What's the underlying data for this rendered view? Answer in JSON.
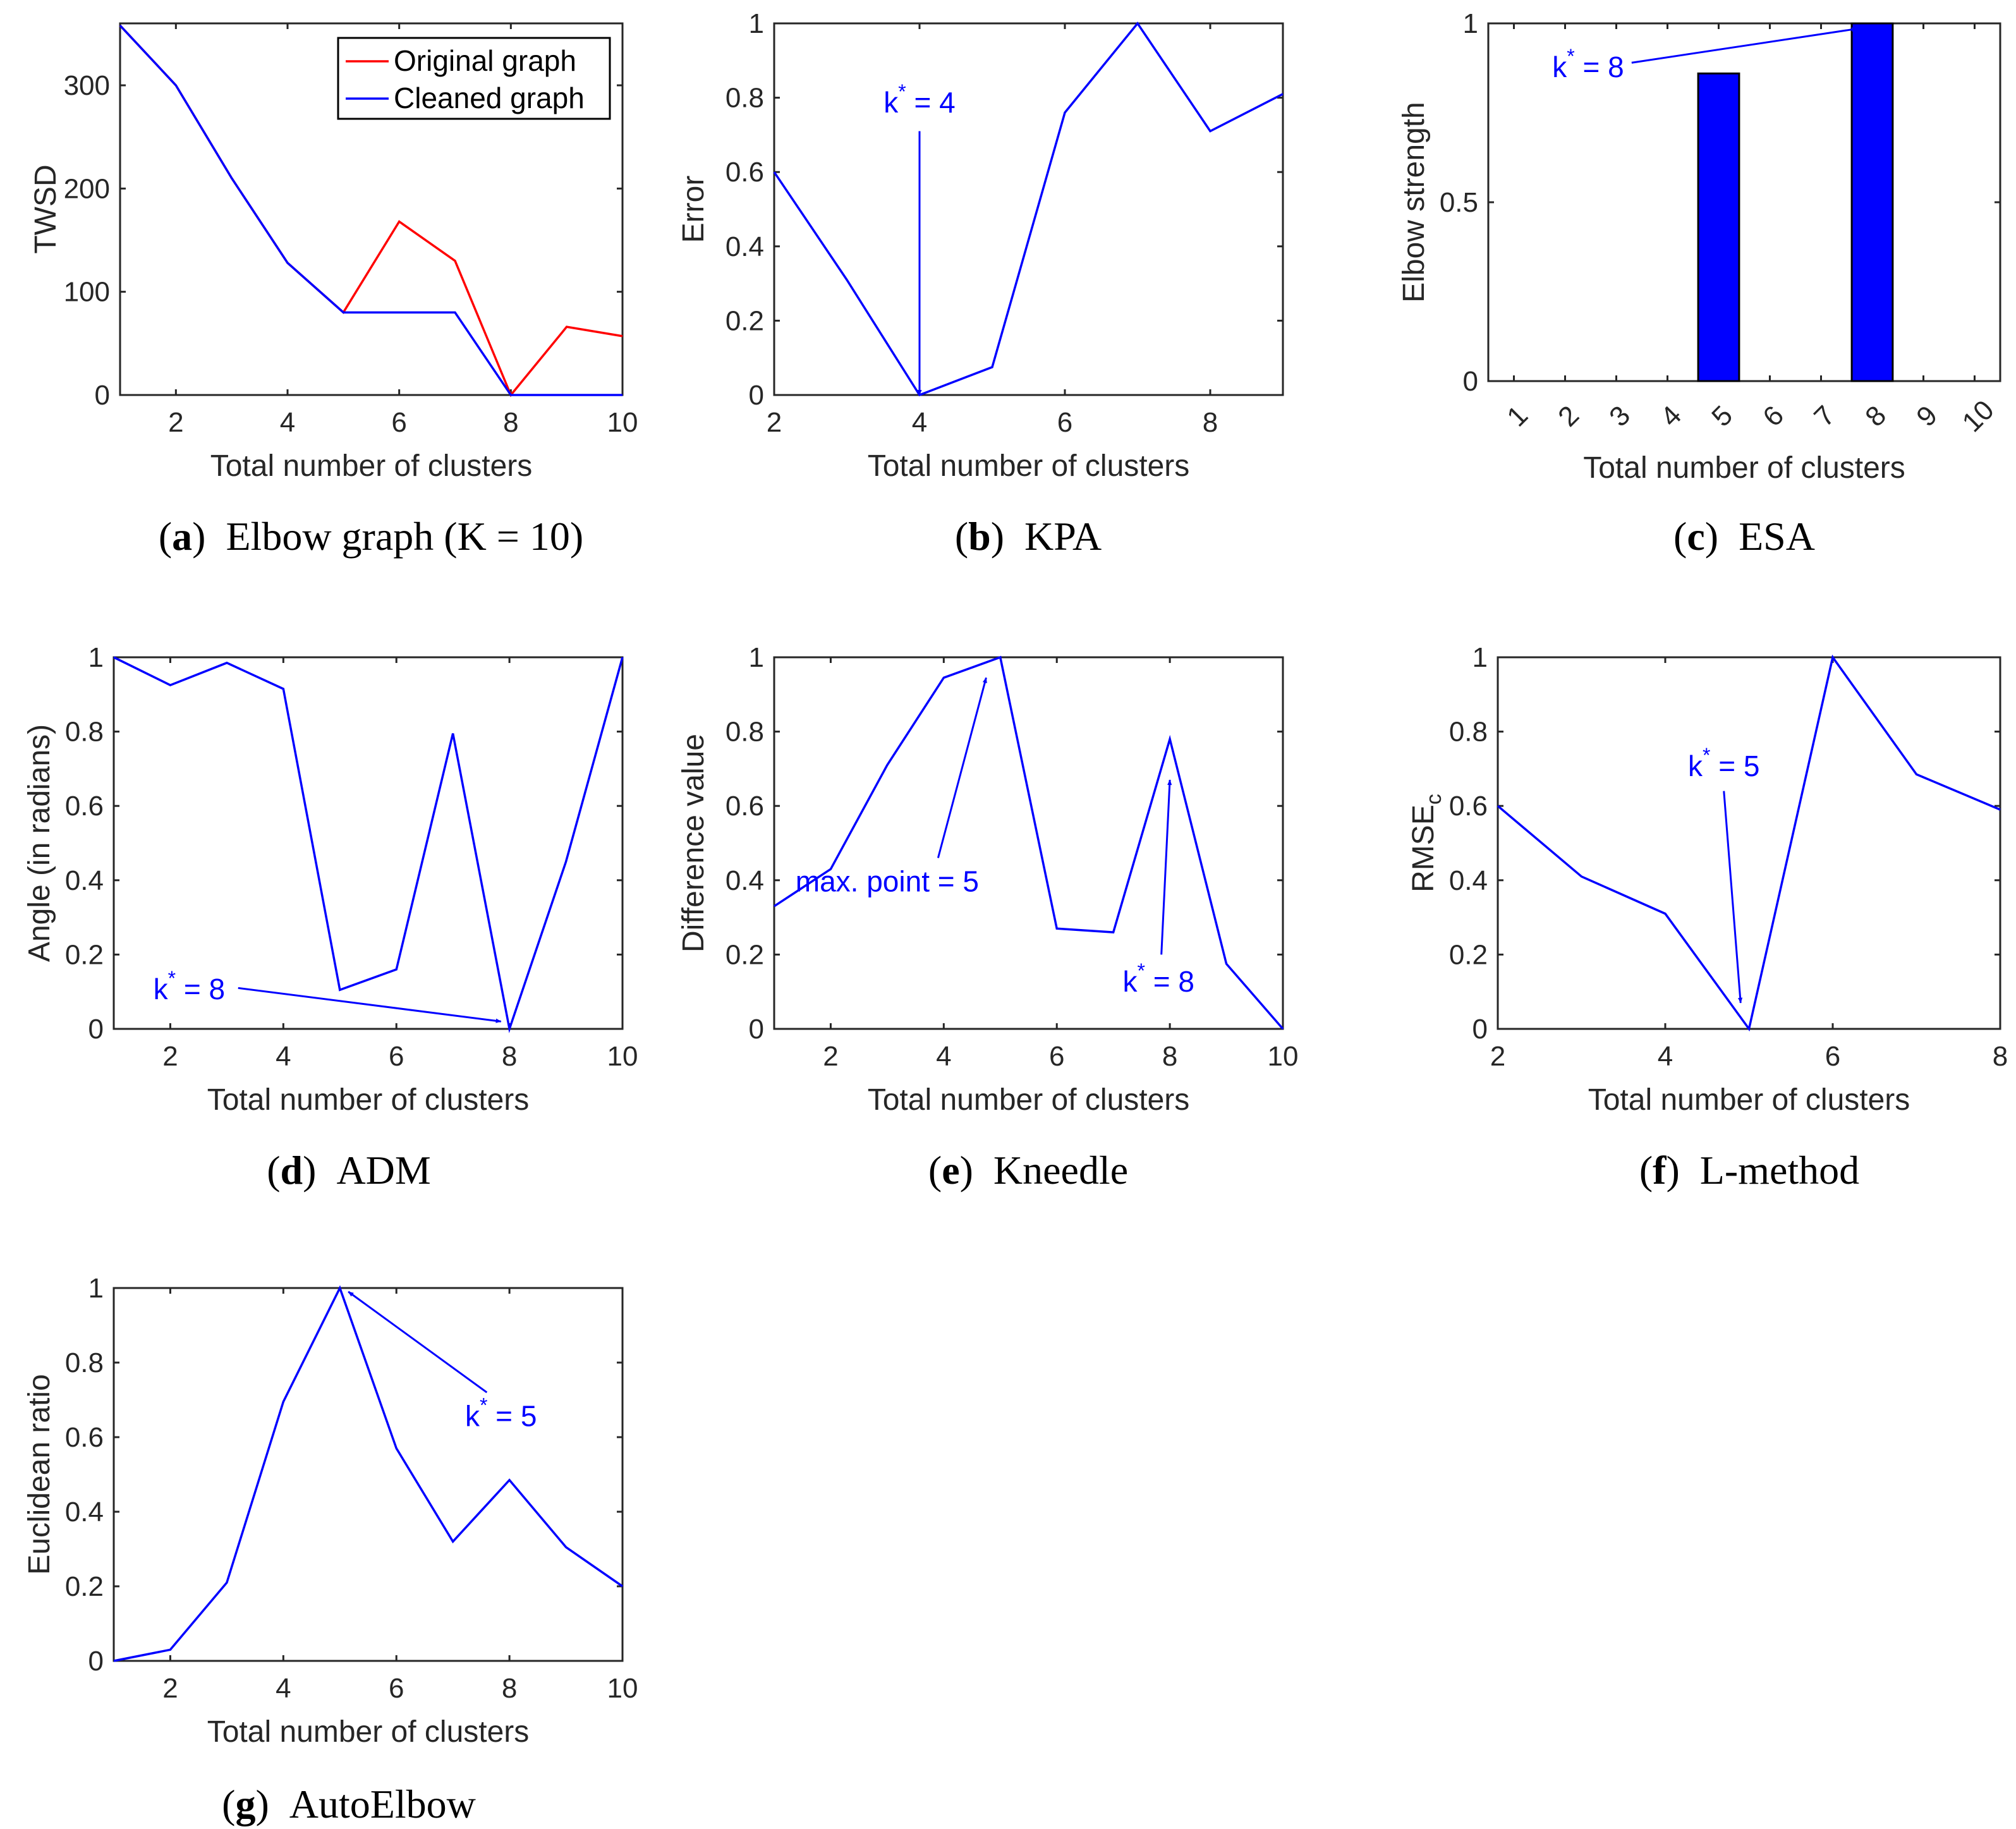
{
  "colors": {
    "blue": "#0000ff",
    "red": "#ff0000",
    "axis": "#262626",
    "bar_edge": "#000000"
  },
  "chart_data": [
    {
      "id": "a",
      "type": "line",
      "caption_letter": "a",
      "caption_text": "Elbow graph (K = 10)",
      "xlabel": "Total number of clusters",
      "ylabel": "TWSD",
      "xlim": [
        1,
        10
      ],
      "ylim": [
        0,
        360
      ],
      "xticks": [
        2,
        4,
        6,
        8,
        10
      ],
      "yticks": [
        0,
        100,
        200,
        300
      ],
      "legend": {
        "position": "top-right",
        "entries": [
          "Original graph",
          "Cleaned graph"
        ]
      },
      "series": [
        {
          "name": "Original graph",
          "color": "#ff0000",
          "x": [
            1,
            2,
            3,
            4,
            5,
            6,
            7,
            8,
            9,
            10
          ],
          "y": [
            358,
            300,
            210,
            128,
            80,
            168,
            130,
            0,
            66,
            57
          ]
        },
        {
          "name": "Cleaned graph",
          "color": "#0000ff",
          "x": [
            1,
            2,
            3,
            4,
            5,
            6,
            7,
            8,
            9,
            10
          ],
          "y": [
            358,
            300,
            210,
            128,
            80,
            80,
            80,
            0,
            0,
            0
          ]
        }
      ],
      "annotations": []
    },
    {
      "id": "b",
      "type": "line",
      "caption_letter": "b",
      "caption_text": "KPA",
      "xlabel": "Total number of clusters",
      "ylabel": "Error",
      "xlim": [
        2,
        9
      ],
      "ylim": [
        0,
        1
      ],
      "xticks": [
        2,
        4,
        6,
        8
      ],
      "yticks": [
        0,
        0.2,
        0.4,
        0.6,
        0.8,
        1
      ],
      "series": [
        {
          "name": "KPA",
          "color": "#0000ff",
          "x": [
            2,
            3,
            4,
            5,
            6,
            7,
            8,
            9
          ],
          "y": [
            0.6,
            0.31,
            0,
            0.075,
            0.76,
            1,
            0.71,
            0.81
          ]
        }
      ],
      "annotations": [
        {
          "base": "k",
          "sup": "*",
          "rest": " = 4",
          "text_at": [
            4,
            0.76
          ],
          "anchor": "middle",
          "arrow_from": [
            4,
            0.71
          ],
          "arrow_to": [
            4,
            0
          ]
        }
      ]
    },
    {
      "id": "c",
      "type": "bar",
      "caption_letter": "c",
      "caption_text": "ESA",
      "xlabel": "Total number of clusters",
      "ylabel": "Elbow strength",
      "xlim": [
        0.5,
        10.5
      ],
      "ylim": [
        0,
        1
      ],
      "xticks": [
        1,
        2,
        3,
        4,
        5,
        6,
        7,
        8,
        9,
        10
      ],
      "yticks": [
        0,
        0.5,
        1
      ],
      "categories": [
        "1",
        "2",
        "3",
        "4",
        "5",
        "6",
        "7",
        "8",
        "9",
        "10"
      ],
      "values": [
        0,
        0,
        0,
        0,
        0.86,
        0,
        0,
        1,
        0,
        0
      ],
      "annotations": [
        {
          "base": "k",
          "sup": "*",
          "rest": " = 8",
          "text_at": [
            1.75,
            0.85
          ],
          "anchor": "start",
          "arrow_from": [
            3.3,
            0.89
          ],
          "arrow_to": [
            7.7,
            0.985
          ]
        }
      ]
    },
    {
      "id": "d",
      "type": "line",
      "caption_letter": "d",
      "caption_text": "ADM",
      "xlabel": "Total number of clusters",
      "ylabel": "Angle (in radians)",
      "xlim": [
        1,
        10
      ],
      "ylim": [
        0,
        1
      ],
      "xticks": [
        2,
        4,
        6,
        8,
        10
      ],
      "yticks": [
        0,
        0.2,
        0.4,
        0.6,
        0.8,
        1
      ],
      "series": [
        {
          "name": "ADM",
          "color": "#0000ff",
          "x": [
            1,
            2,
            3,
            4,
            5,
            6,
            7,
            8,
            9,
            10
          ],
          "y": [
            1,
            0.925,
            0.985,
            0.915,
            0.105,
            0.16,
            0.795,
            0,
            0.45,
            1
          ]
        }
      ],
      "annotations": [
        {
          "base": "k",
          "sup": "*",
          "rest": " = 8",
          "text_at": [
            1.7,
            0.08
          ],
          "anchor": "start",
          "arrow_from": [
            3.2,
            0.11
          ],
          "arrow_to": [
            7.85,
            0.02
          ]
        }
      ]
    },
    {
      "id": "e",
      "type": "line",
      "caption_letter": "e",
      "caption_text": "Kneedle",
      "xlabel": "Total number of clusters",
      "ylabel": "Difference value",
      "xlim": [
        1,
        10
      ],
      "ylim": [
        0,
        1
      ],
      "xticks": [
        2,
        4,
        6,
        8,
        10
      ],
      "yticks": [
        0,
        0.2,
        0.4,
        0.6,
        0.8,
        1
      ],
      "series": [
        {
          "name": "Kneedle",
          "color": "#0000ff",
          "x": [
            1,
            2,
            3,
            4,
            5,
            6,
            7,
            8,
            9,
            10
          ],
          "y": [
            0.33,
            0.43,
            0.71,
            0.945,
            1,
            0.27,
            0.26,
            0.78,
            0.175,
            0
          ]
        }
      ],
      "annotations": [
        {
          "base": "max. point = 5",
          "sup": "",
          "rest": "",
          "text_at": [
            3.0,
            0.37
          ],
          "anchor": "middle",
          "arrow_from": [
            3.9,
            0.46
          ],
          "arrow_to": [
            4.75,
            0.945
          ]
        },
        {
          "base": "k",
          "sup": "*",
          "rest": " = 8",
          "text_at": [
            7.8,
            0.1
          ],
          "anchor": "middle",
          "arrow_from": [
            7.85,
            0.2
          ],
          "arrow_to": [
            8.0,
            0.67
          ]
        }
      ]
    },
    {
      "id": "f",
      "type": "line",
      "caption_letter": "f",
      "caption_text": "L-method",
      "xlabel": "Total number of clusters",
      "ylabel": "RMSE",
      "ylabel_sub": "c",
      "xlim": [
        2,
        8
      ],
      "ylim": [
        0,
        1
      ],
      "xticks": [
        2,
        4,
        6,
        8
      ],
      "yticks": [
        0,
        0.2,
        0.4,
        0.6,
        0.8,
        1
      ],
      "series": [
        {
          "name": "L-method",
          "color": "#0000ff",
          "x": [
            2,
            3,
            4,
            5,
            6,
            7,
            8
          ],
          "y": [
            0.6,
            0.41,
            0.31,
            0,
            1,
            0.685,
            0.59
          ]
        }
      ],
      "annotations": [
        {
          "base": "k",
          "sup": "*",
          "rest": " = 5",
          "text_at": [
            4.7,
            0.68
          ],
          "anchor": "middle",
          "arrow_from": [
            4.7,
            0.64
          ],
          "arrow_to": [
            4.9,
            0.07
          ]
        }
      ]
    },
    {
      "id": "g",
      "type": "line",
      "caption_letter": "g",
      "caption_text": "AutoElbow",
      "xlabel": "Total number of clusters",
      "ylabel": "Euclidean ratio",
      "xlim": [
        1,
        10
      ],
      "ylim": [
        0,
        1
      ],
      "xticks": [
        2,
        4,
        6,
        8,
        10
      ],
      "yticks": [
        0,
        0.2,
        0.4,
        0.6,
        0.8,
        1
      ],
      "series": [
        {
          "name": "AutoElbow",
          "color": "#0000ff",
          "x": [
            1,
            2,
            3,
            4,
            5,
            6,
            7,
            8,
            9,
            10
          ],
          "y": [
            0,
            0.03,
            0.21,
            0.695,
            1,
            0.57,
            0.32,
            0.485,
            0.305,
            0.2
          ]
        }
      ],
      "annotations": [
        {
          "base": "k",
          "sup": "*",
          "rest": " = 5",
          "text_at": [
            7.85,
            0.63
          ],
          "anchor": "middle",
          "arrow_from": [
            7.6,
            0.72
          ],
          "arrow_to": [
            5.15,
            0.99
          ]
        }
      ]
    }
  ]
}
